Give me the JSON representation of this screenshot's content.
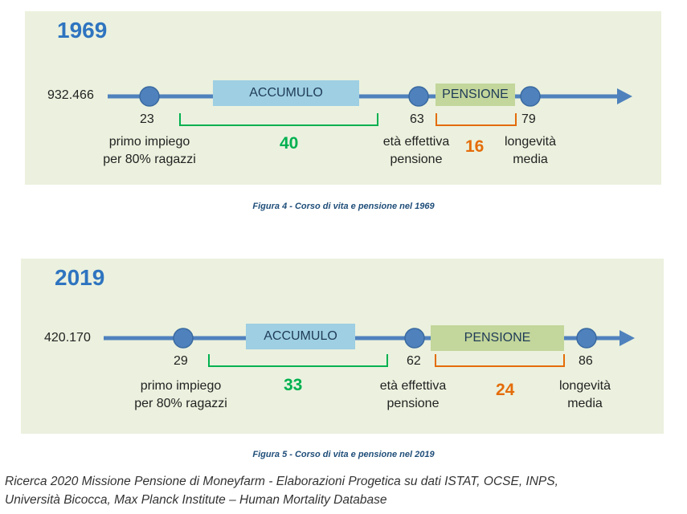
{
  "diagram_1969": {
    "year": "1969",
    "start_value": "932.466",
    "accumulo_label": "ACCUMULO",
    "pensione_label": "PENSIONE",
    "age_first_job": "23",
    "age_retirement": "63",
    "age_longevity": "79",
    "first_job_label_line1": "primo impiego",
    "first_job_label_line2": "per 80% ragazzi",
    "retirement_label_line1": "età effettiva",
    "retirement_label_line2": "pensione",
    "longevity_label_line1": "longevità",
    "longevity_label_line2": "media",
    "accumulo_years": "40",
    "pensione_years": "16",
    "caption": "Figura 4 - Corso di vita e pensione nel 1969"
  },
  "diagram_2019": {
    "year": "2019",
    "start_value": "420.170",
    "accumulo_label": "ACCUMULO",
    "pensione_label": "PENSIONE",
    "age_first_job": "29",
    "age_retirement": "62",
    "age_longevity": "86",
    "first_job_label_line1": "primo impiego",
    "first_job_label_line2": "per 80% ragazzi",
    "retirement_label_line1": "età effettiva",
    "retirement_label_line2": "pensione",
    "longevity_label_line1": "longevità",
    "longevity_label_line2": "media",
    "accumulo_years": "33",
    "pensione_years": "24",
    "caption": "Figura 5 - Corso di vita e pensione nel 2019"
  },
  "source": {
    "line1": "Ricerca 2020 Missione Pensione di Moneyfarm - Elaborazioni Progetica su dati ISTAT, OCSE, INPS,",
    "line2": "Università Bicocca, Max Planck Institute – Human Mortality Database"
  },
  "colors": {
    "timeline": "#4f81bd",
    "accumulo_box": "#9ecfe3",
    "pensione_box": "#c3d69b",
    "green": "#00b050",
    "orange": "#e46c0a",
    "year_blue": "#2e74c0"
  }
}
